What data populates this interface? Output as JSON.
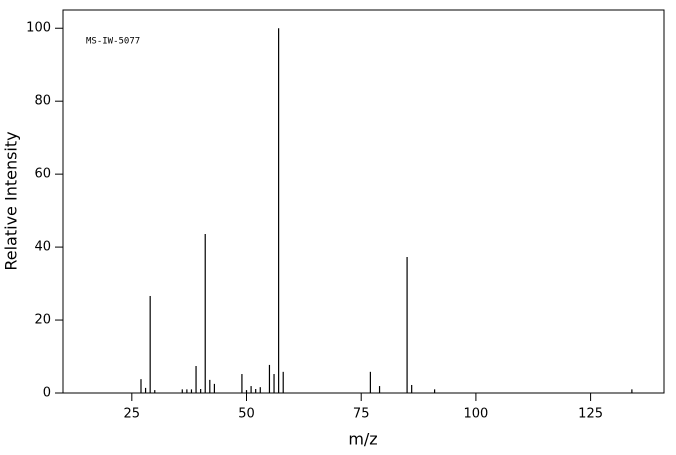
{
  "chart_data": {
    "type": "stem",
    "title": "MS-IW-5077",
    "x_label": "m/z",
    "y_label": "Relative Intensity",
    "x": [
      27,
      28,
      29,
      30,
      36,
      37,
      38,
      39,
      40,
      41,
      42,
      43,
      49,
      50,
      51,
      52,
      53,
      55,
      56,
      57,
      58,
      77,
      79,
      85,
      86,
      91,
      134
    ],
    "values": [
      3.8,
      1.4,
      26.6,
      0.8,
      1,
      1,
      1,
      7.4,
      1.1,
      43.6,
      3.6,
      2.5,
      5.2,
      0.8,
      1.9,
      1.1,
      1.6,
      7.7,
      5.2,
      100,
      5.8,
      5.8,
      1.9,
      37.3,
      2.2,
      1,
      1
    ],
    "color": "#000000",
    "xlim": [
      10,
      141
    ],
    "xticks": [
      25,
      50,
      75,
      100,
      125
    ],
    "ylim": [
      0,
      105
    ],
    "yticks": [
      0,
      20,
      40,
      60,
      80,
      100
    ]
  }
}
